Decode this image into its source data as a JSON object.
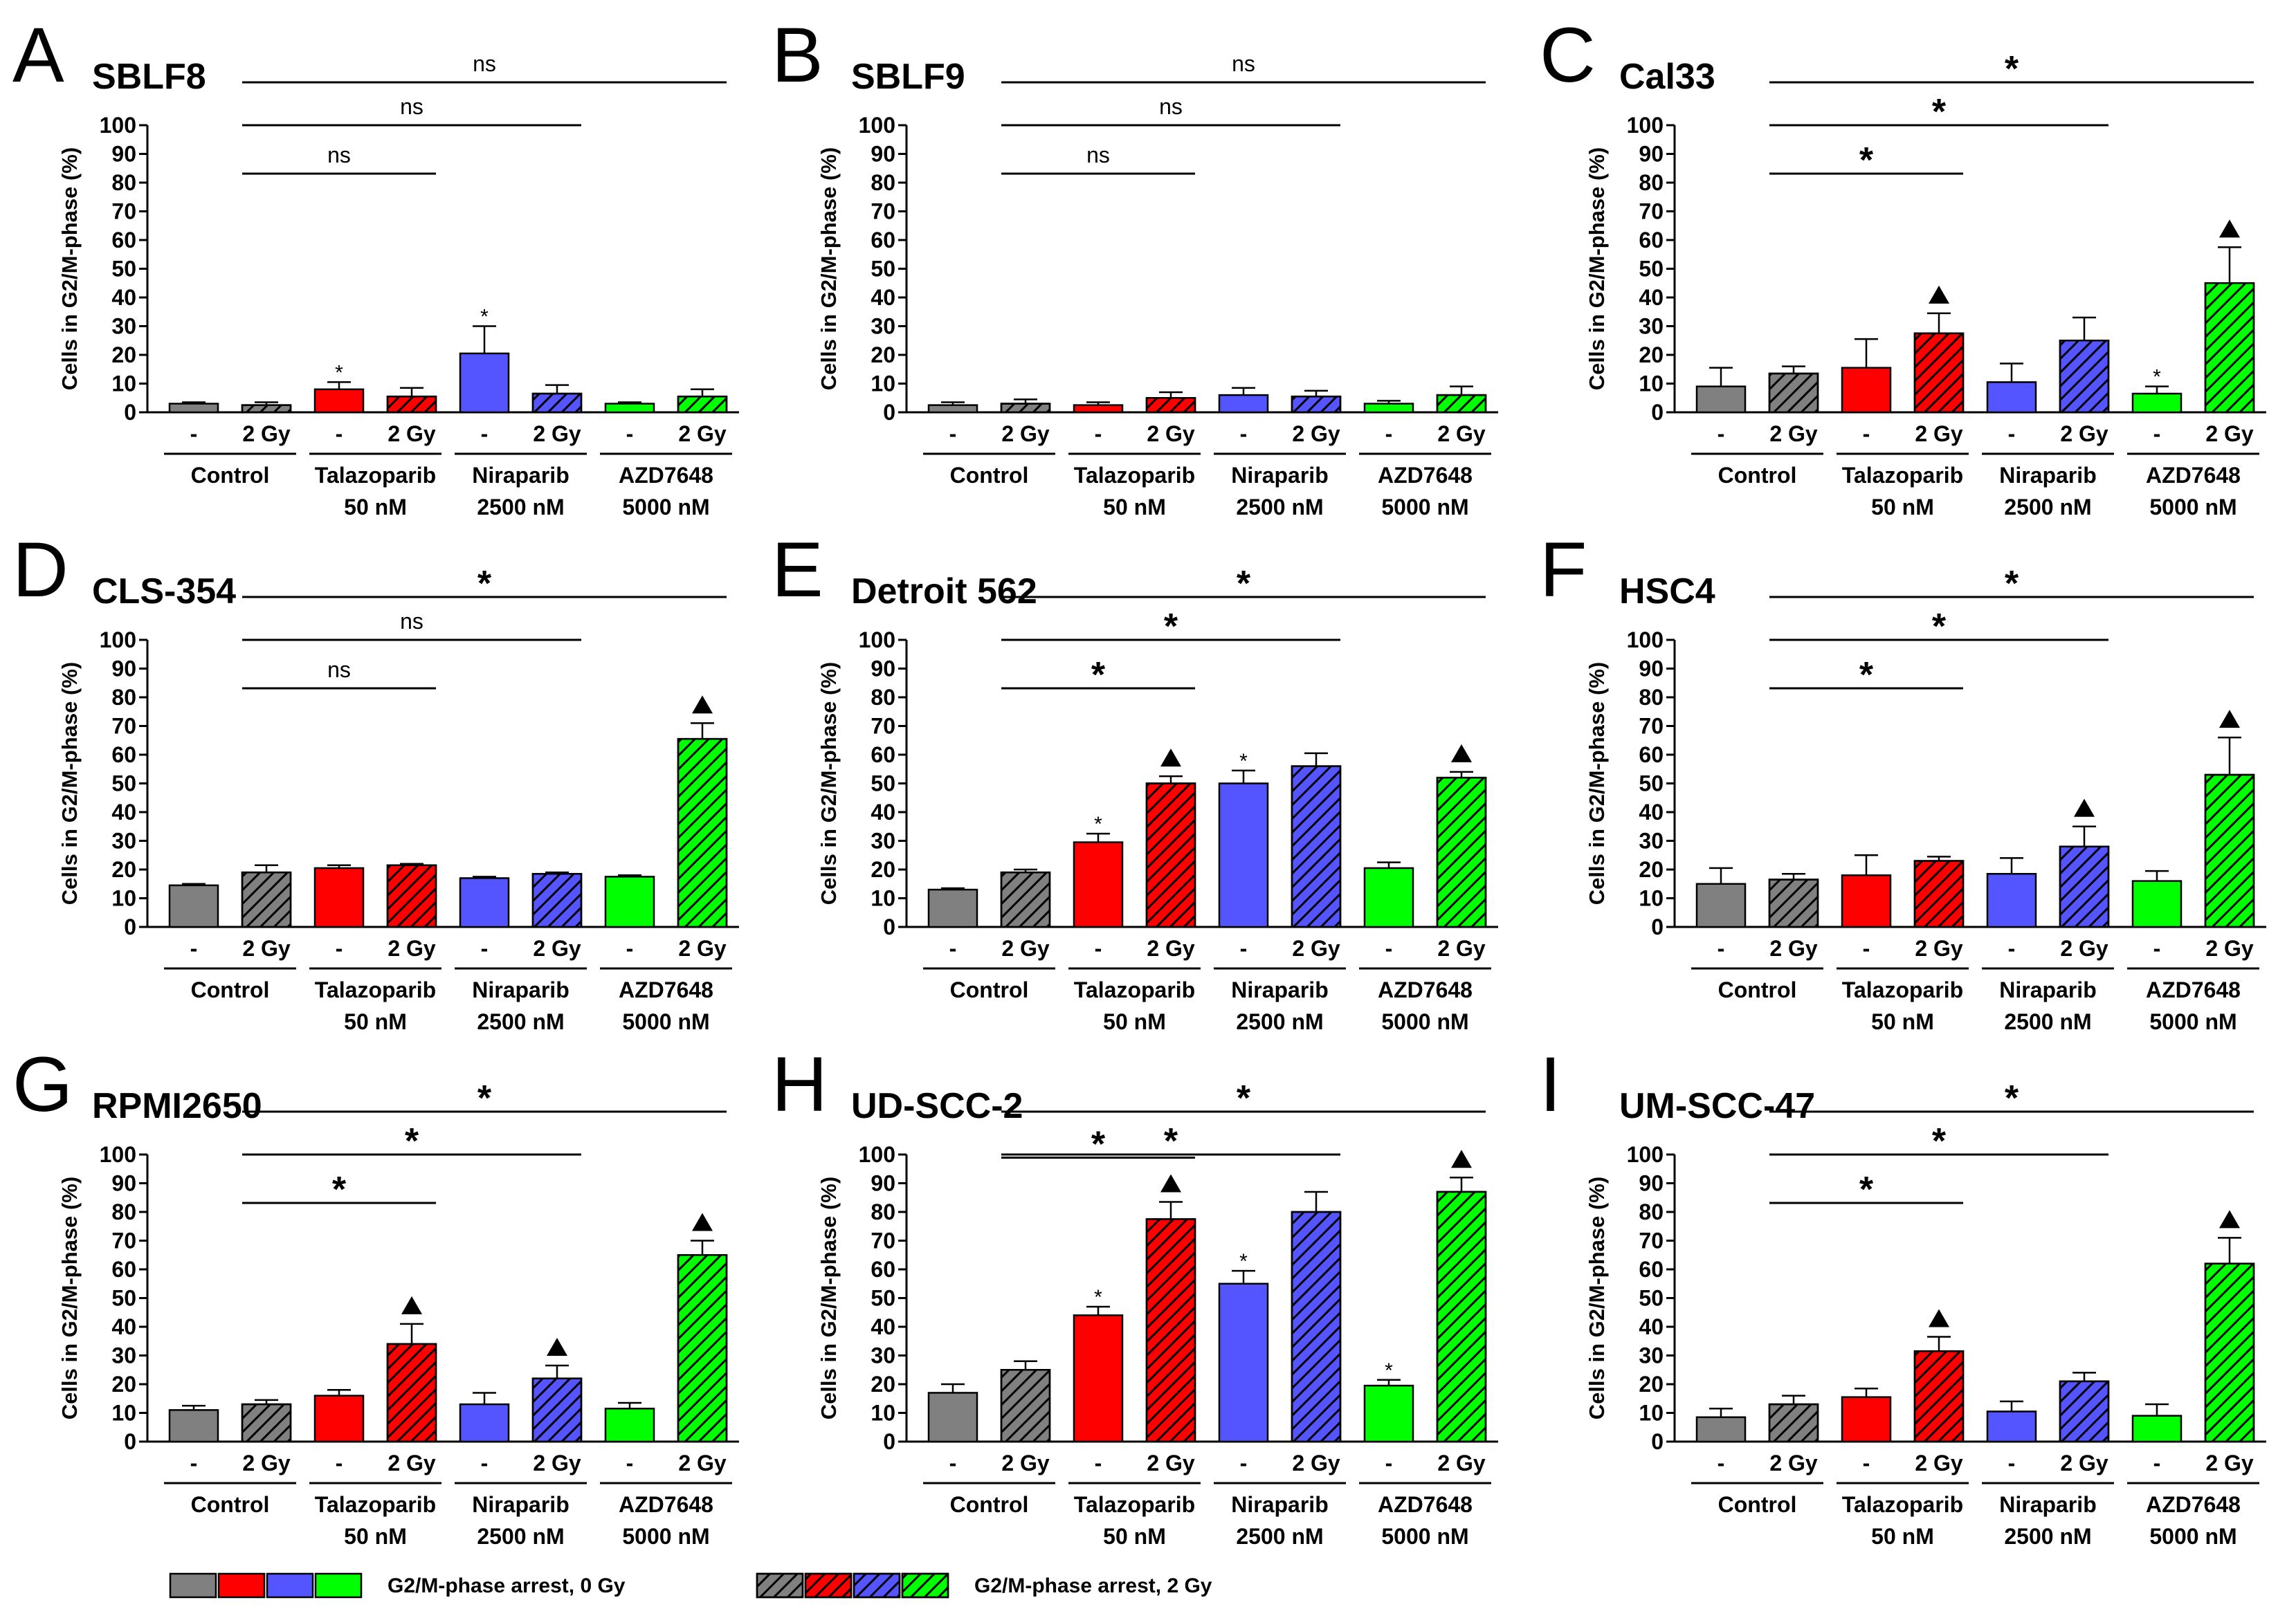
{
  "figure": {
    "y_axis_label": "Cells in G2/M-phase (%)",
    "y_ticks": [
      "0",
      "10",
      "20",
      "30",
      "40",
      "50",
      "60",
      "70",
      "80",
      "90",
      "100"
    ],
    "x_tick_labels": [
      "-",
      "2 Gy"
    ],
    "group_line1": [
      "Control",
      "Talazoparib",
      "Niraparib",
      "AZD7648"
    ],
    "group_line2": [
      "",
      "50 nM",
      "2500 nM",
      "5000 nM"
    ],
    "legend": {
      "label_0gy": "G2/M-phase arrest, 0 Gy",
      "label_2gy": "G2/M-phase arrest, 2 Gy"
    },
    "colors": {
      "control": "#808080",
      "talazoparib": "#ff0000",
      "niraparib": "#5555ff",
      "azd7648": "#00ff00"
    }
  },
  "chart_data": [
    {
      "type": "bar",
      "panel": "A",
      "title": "SBLF8",
      "ylim": [
        0,
        100
      ],
      "ylabel": "Cells in G2/M-phase (%)",
      "categories": [
        "Control -",
        "Control 2 Gy",
        "Talazoparib -",
        "Talazoparib 2 Gy",
        "Niraparib -",
        "Niraparib 2 Gy",
        "AZD7648 -",
        "AZD7648 2 Gy"
      ],
      "values": [
        3,
        2.5,
        8,
        5.5,
        20.5,
        6.5,
        3,
        5.5
      ],
      "errors": [
        0.5,
        1,
        2.5,
        3,
        9.5,
        3,
        0.5,
        2.5
      ],
      "small_star": [
        false,
        false,
        true,
        false,
        true,
        false,
        false,
        false
      ],
      "triangle": [
        false,
        false,
        false,
        false,
        false,
        false,
        false,
        false
      ],
      "brackets": [
        {
          "from": "Control 2 Gy",
          "to": "Talazoparib 2 Gy",
          "label": "ns"
        },
        {
          "from": "Control 2 Gy",
          "to": "Niraparib 2 Gy",
          "label": "ns"
        },
        {
          "from": "Control 2 Gy",
          "to": "AZD7648 2 Gy",
          "label": "ns"
        }
      ]
    },
    {
      "type": "bar",
      "panel": "B",
      "title": "SBLF9",
      "ylim": [
        0,
        100
      ],
      "ylabel": "Cells in G2/M-phase (%)",
      "categories": [
        "Control -",
        "Control 2 Gy",
        "Talazoparib -",
        "Talazoparib 2 Gy",
        "Niraparib -",
        "Niraparib 2 Gy",
        "AZD7648 -",
        "AZD7648 2 Gy"
      ],
      "values": [
        2.5,
        3,
        2.5,
        5,
        6,
        5.5,
        3,
        6
      ],
      "errors": [
        1,
        1.5,
        1,
        2,
        2.5,
        2,
        1,
        3
      ],
      "small_star": [
        false,
        false,
        false,
        false,
        false,
        false,
        false,
        false
      ],
      "triangle": [
        false,
        false,
        false,
        false,
        false,
        false,
        false,
        false
      ],
      "brackets": [
        {
          "from": "Control 2 Gy",
          "to": "Talazoparib 2 Gy",
          "label": "ns"
        },
        {
          "from": "Control 2 Gy",
          "to": "Niraparib 2 Gy",
          "label": "ns"
        },
        {
          "from": "Control 2 Gy",
          "to": "AZD7648 2 Gy",
          "label": "ns"
        }
      ]
    },
    {
      "type": "bar",
      "panel": "C",
      "title": "Cal33",
      "ylim": [
        0,
        100
      ],
      "ylabel": "Cells in G2/M-phase (%)",
      "categories": [
        "Control -",
        "Control 2 Gy",
        "Talazoparib -",
        "Talazoparib 2 Gy",
        "Niraparib -",
        "Niraparib 2 Gy",
        "AZD7648 -",
        "AZD7648 2 Gy"
      ],
      "values": [
        9,
        13.5,
        15.5,
        27.5,
        10.5,
        25,
        6.5,
        45
      ],
      "errors": [
        6.5,
        2.5,
        10,
        7,
        6.5,
        8,
        2.5,
        12.5
      ],
      "small_star": [
        false,
        false,
        false,
        false,
        false,
        false,
        true,
        false
      ],
      "triangle": [
        false,
        false,
        false,
        true,
        false,
        false,
        false,
        true
      ],
      "brackets": [
        {
          "from": "Control 2 Gy",
          "to": "Talazoparib 2 Gy",
          "label": "*"
        },
        {
          "from": "Control 2 Gy",
          "to": "Niraparib 2 Gy",
          "label": "*"
        },
        {
          "from": "Control 2 Gy",
          "to": "AZD7648 2 Gy",
          "label": "*"
        }
      ]
    },
    {
      "type": "bar",
      "panel": "D",
      "title": "CLS-354",
      "ylim": [
        0,
        100
      ],
      "ylabel": "Cells in G2/M-phase (%)",
      "categories": [
        "Control -",
        "Control 2 Gy",
        "Talazoparib -",
        "Talazoparib 2 Gy",
        "Niraparib -",
        "Niraparib 2 Gy",
        "AZD7648 -",
        "AZD7648 2 Gy"
      ],
      "values": [
        14.5,
        19,
        20.5,
        21.5,
        17,
        18.5,
        17.5,
        65.5
      ],
      "errors": [
        0.5,
        2.5,
        1,
        0.5,
        0.5,
        0.5,
        0.5,
        5.5
      ],
      "small_star": [
        false,
        false,
        false,
        false,
        false,
        false,
        false,
        false
      ],
      "triangle": [
        false,
        false,
        false,
        false,
        false,
        false,
        false,
        true
      ],
      "brackets": [
        {
          "from": "Control 2 Gy",
          "to": "Talazoparib 2 Gy",
          "label": "ns"
        },
        {
          "from": "Control 2 Gy",
          "to": "Niraparib 2 Gy",
          "label": "ns"
        },
        {
          "from": "Control 2 Gy",
          "to": "AZD7648 2 Gy",
          "label": "*"
        }
      ]
    },
    {
      "type": "bar",
      "panel": "E",
      "title": "Detroit 562",
      "ylim": [
        0,
        100
      ],
      "ylabel": "Cells in G2/M-phase (%)",
      "categories": [
        "Control -",
        "Control 2 Gy",
        "Talazoparib -",
        "Talazoparib 2 Gy",
        "Niraparib -",
        "Niraparib 2 Gy",
        "AZD7648 -",
        "AZD7648 2 Gy"
      ],
      "values": [
        13,
        19,
        29.5,
        50,
        50,
        56,
        20.5,
        52
      ],
      "errors": [
        0.5,
        1,
        3,
        2.5,
        4.5,
        4.5,
        2,
        2
      ],
      "small_star": [
        false,
        false,
        true,
        false,
        true,
        false,
        false,
        false
      ],
      "triangle": [
        false,
        false,
        false,
        true,
        false,
        false,
        false,
        true
      ],
      "brackets": [
        {
          "from": "Control 2 Gy",
          "to": "Talazoparib 2 Gy",
          "label": "*"
        },
        {
          "from": "Control 2 Gy",
          "to": "Niraparib 2 Gy",
          "label": "*"
        },
        {
          "from": "Control 2 Gy",
          "to": "AZD7648 2 Gy",
          "label": "*"
        }
      ]
    },
    {
      "type": "bar",
      "panel": "F",
      "title": "HSC4",
      "ylim": [
        0,
        100
      ],
      "ylabel": "Cells in G2/M-phase (%)",
      "categories": [
        "Control -",
        "Control 2 Gy",
        "Talazoparib -",
        "Talazoparib 2 Gy",
        "Niraparib -",
        "Niraparib 2 Gy",
        "AZD7648 -",
        "AZD7648 2 Gy"
      ],
      "values": [
        15,
        16.5,
        18,
        23,
        18.5,
        28,
        16,
        53
      ],
      "errors": [
        5.5,
        2,
        7,
        1.5,
        5.5,
        7,
        3.5,
        13
      ],
      "small_star": [
        false,
        false,
        false,
        false,
        false,
        false,
        false,
        false
      ],
      "triangle": [
        false,
        false,
        false,
        false,
        false,
        true,
        false,
        true
      ],
      "brackets": [
        {
          "from": "Control 2 Gy",
          "to": "Talazoparib 2 Gy",
          "label": "*"
        },
        {
          "from": "Control 2 Gy",
          "to": "Niraparib 2 Gy",
          "label": "*"
        },
        {
          "from": "Control 2 Gy",
          "to": "AZD7648 2 Gy",
          "label": "*"
        }
      ]
    },
    {
      "type": "bar",
      "panel": "G",
      "title": "RPMI2650",
      "ylim": [
        0,
        100
      ],
      "ylabel": "Cells in G2/M-phase (%)",
      "categories": [
        "Control -",
        "Control 2 Gy",
        "Talazoparib -",
        "Talazoparib 2 Gy",
        "Niraparib -",
        "Niraparib 2 Gy",
        "AZD7648 -",
        "AZD7648 2 Gy"
      ],
      "values": [
        11,
        13,
        16,
        34,
        13,
        22,
        11.5,
        65
      ],
      "errors": [
        1.5,
        1.5,
        2,
        7,
        4,
        4.5,
        2,
        5
      ],
      "small_star": [
        false,
        false,
        false,
        false,
        false,
        false,
        false,
        false
      ],
      "triangle": [
        false,
        false,
        false,
        true,
        false,
        true,
        false,
        true
      ],
      "brackets": [
        {
          "from": "Control 2 Gy",
          "to": "Talazoparib 2 Gy",
          "label": "*"
        },
        {
          "from": "Control 2 Gy",
          "to": "Niraparib 2 Gy",
          "label": "*"
        },
        {
          "from": "Control 2 Gy",
          "to": "AZD7648 2 Gy",
          "label": "*"
        }
      ]
    },
    {
      "type": "bar",
      "panel": "H",
      "title": "UD-SCC-2",
      "ylim": [
        0,
        100
      ],
      "ylabel": "Cells in G2/M-phase (%)",
      "categories": [
        "Control -",
        "Control 2 Gy",
        "Talazoparib -",
        "Talazoparib 2 Gy",
        "Niraparib -",
        "Niraparib 2 Gy",
        "AZD7648 -",
        "AZD7648 2 Gy"
      ],
      "values": [
        17,
        25,
        44,
        77.5,
        55,
        80,
        19.5,
        87
      ],
      "errors": [
        3,
        3,
        3,
        6,
        4.5,
        7,
        2,
        5
      ],
      "small_star": [
        false,
        false,
        true,
        false,
        true,
        false,
        true,
        false
      ],
      "triangle": [
        false,
        false,
        false,
        true,
        false,
        false,
        false,
        true
      ],
      "brackets": [
        {
          "from": "Control 2 Gy",
          "to": "Talazoparib 2 Gy",
          "label": "*"
        },
        {
          "from": "Control 2 Gy",
          "to": "Niraparib 2 Gy",
          "label": "*"
        },
        {
          "from": "Control 2 Gy",
          "to": "AZD7648 2 Gy",
          "label": "*"
        }
      ]
    },
    {
      "type": "bar",
      "panel": "I",
      "title": "UM-SCC-47",
      "ylim": [
        0,
        100
      ],
      "ylabel": "Cells in G2/M-phase (%)",
      "categories": [
        "Control -",
        "Control 2 Gy",
        "Talazoparib -",
        "Talazoparib 2 Gy",
        "Niraparib -",
        "Niraparib 2 Gy",
        "AZD7648 -",
        "AZD7648 2 Gy"
      ],
      "values": [
        8.5,
        13,
        15.5,
        31.5,
        10.5,
        21,
        9,
        62
      ],
      "errors": [
        3,
        3,
        3,
        5,
        3.5,
        3,
        4,
        9
      ],
      "small_star": [
        false,
        false,
        false,
        false,
        false,
        false,
        false,
        false
      ],
      "triangle": [
        false,
        false,
        false,
        true,
        false,
        false,
        false,
        true
      ],
      "brackets": [
        {
          "from": "Control 2 Gy",
          "to": "Talazoparib 2 Gy",
          "label": "*"
        },
        {
          "from": "Control 2 Gy",
          "to": "Niraparib 2 Gy",
          "label": "*"
        },
        {
          "from": "Control 2 Gy",
          "to": "AZD7648 2 Gy",
          "label": "*"
        }
      ]
    }
  ]
}
